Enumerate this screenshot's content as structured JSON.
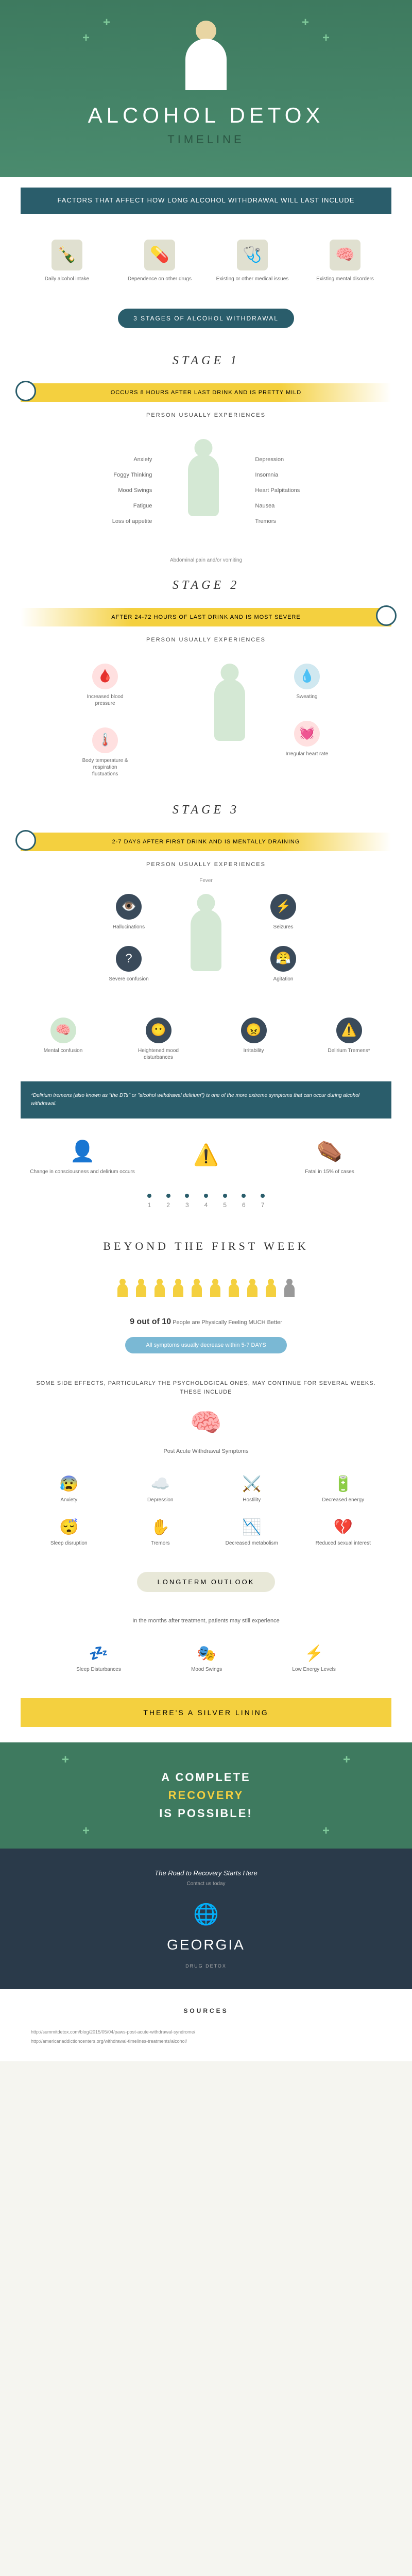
{
  "hero": {
    "title": "ALCOHOL DETOX",
    "subtitle": "TIMELINE"
  },
  "factors_banner": "FACTORS THAT AFFECT HOW LONG ALCOHOL WITHDRAWAL WILL LAST INCLUDE",
  "factors": [
    {
      "icon": "🍾",
      "label": "Daily alcohol intake"
    },
    {
      "icon": "💊",
      "label": "Dependence on other drugs"
    },
    {
      "icon": "🩺",
      "label": "Existing or other medical issues"
    },
    {
      "icon": "🧠",
      "label": "Existing mental disorders"
    }
  ],
  "stages_pill": "3 STAGES OF ALCOHOL WITHDRAWAL",
  "stage1": {
    "title": "STAGE 1",
    "timing": "OCCURS 8 HOURS AFTER LAST DRINK AND IS PRETTY MILD",
    "sub": "PERSON USUALLY EXPERIENCES",
    "left": [
      "Anxiety",
      "Foggy Thinking",
      "Mood Swings",
      "Fatigue",
      "Loss of appetite"
    ],
    "right": [
      "Depression",
      "Insomnia",
      "Heart Palpitations",
      "Nausea",
      "Tremors"
    ],
    "center": "Abdominal pain and/or vomiting"
  },
  "stage2": {
    "title": "STAGE 2",
    "timing": "AFTER 24-72 HOURS OF LAST DRINK AND IS MOST SEVERE",
    "sub": "PERSON USUALLY EXPERIENCES",
    "items": [
      {
        "icon": "🩸",
        "label": "Increased blood pressure",
        "cls": "red-bg"
      },
      {
        "icon": "💧",
        "label": "Sweating",
        "cls": "blue-bg"
      },
      {
        "icon": "🌡️",
        "label": "Body temperature & respiration fluctuations",
        "cls": "red-bg"
      },
      {
        "icon": "💓",
        "label": "Irregular heart rate",
        "cls": "red-bg"
      }
    ]
  },
  "stage3": {
    "title": "STAGE 3",
    "timing": "2-7 DAYS AFTER FIRST DRINK AND IS MENTALLY DRAINING",
    "sub": "PERSON USUALLY EXPERIENCES",
    "top": "Fever",
    "mid_left": [
      {
        "icon": "👁️",
        "label": "Hallucinations"
      },
      {
        "icon": "?",
        "label": "Severe confusion"
      }
    ],
    "mid_right": [
      {
        "icon": "⚡",
        "label": "Seizures"
      },
      {
        "icon": "😤",
        "label": "Agitation"
      }
    ],
    "bottom": [
      {
        "icon": "🧠",
        "label": "Mental confusion",
        "cls": "green-bg"
      },
      {
        "icon": "😶",
        "label": "Heightened mood disturbances",
        "cls": "dark-bg"
      },
      {
        "icon": "😠",
        "label": "Irritability",
        "cls": "dark-bg"
      },
      {
        "icon": "⚠️",
        "label": "Delirium Tremens*",
        "cls": "dark-bg"
      }
    ]
  },
  "dt_info": "*Delirium tremens (also known as \"the DTs\" or \"alcohol withdrawal delirium\") is one of the more extreme symptoms that can occur during alcohol withdrawal.",
  "dt_items": [
    {
      "icon": "👤",
      "label": "Change in consciousness and delirium occurs"
    },
    {
      "icon": "⚠️",
      "label": ""
    },
    {
      "icon": "⚰️",
      "label": "Fatal in 15% of cases"
    }
  ],
  "days": [
    "1",
    "2",
    "3",
    "4",
    "5",
    "6",
    "7"
  ],
  "beyond": {
    "title": "BEYOND THE FIRST WEEK",
    "stat_num": "9 out of 10",
    "stat_label": "People are Physically Feeling MUCH Better",
    "pill": "All symptoms usually decrease within 5-7 DAYS",
    "paws_header": "SOME SIDE EFFECTS, PARTICULARLY THE PSYCHOLOGICAL ONES, MAY CONTINUE FOR SEVERAL WEEKS. THESE INCLUDE",
    "paws_title": "Post Acute Withdrawal Symptoms",
    "paws_items": [
      {
        "icon": "😰",
        "label": "Anxiety"
      },
      {
        "icon": "☁️",
        "label": "Depression"
      },
      {
        "icon": "⚔️",
        "label": "Hostility"
      },
      {
        "icon": "🔋",
        "label": "Decreased energy"
      },
      {
        "icon": "😴",
        "label": "Sleep disruption"
      },
      {
        "icon": "✋",
        "label": "Tremors"
      },
      {
        "icon": "📉",
        "label": "Decreased metabolism"
      },
      {
        "icon": "💔",
        "label": "Reduced sexual interest"
      }
    ]
  },
  "longterm": {
    "pill": "LONGTERM OUTLOOK",
    "text": "In the months after treatment, patients may still experience",
    "items": [
      {
        "icon": "💤",
        "label": "Sleep Disturbances",
        "color": "#3a4a5a"
      },
      {
        "icon": "🎭",
        "label": "Mood Swings",
        "color": "#c03030"
      },
      {
        "icon": "⚡",
        "label": "Low Energy Levels",
        "color": "#f4d03f"
      }
    ]
  },
  "silver": "THERE'S A SILVER LINING",
  "recovery": {
    "line1": "A COMPLETE",
    "line2": "RECOVERY",
    "line3": "IS POSSIBLE!"
  },
  "footer": {
    "title": "The Road to Recovery Starts Here",
    "sub": "Contact us today",
    "logo": "GEORGIA",
    "logo_sub": "DRUG DETOX"
  },
  "sources": {
    "title": "SOURCES",
    "links": [
      "http://summitdetox.com/blog/2015/05/04/paws-post-acute-withdrawal-syndrome/",
      "http://americanaddictioncenters.org/withdrawal-timelines-treatments/alcohol/"
    ]
  },
  "colors": {
    "green": "#3e7a5f",
    "teal": "#2a5d6b",
    "yellow": "#f4d03f",
    "dark": "#2a3a4a"
  }
}
